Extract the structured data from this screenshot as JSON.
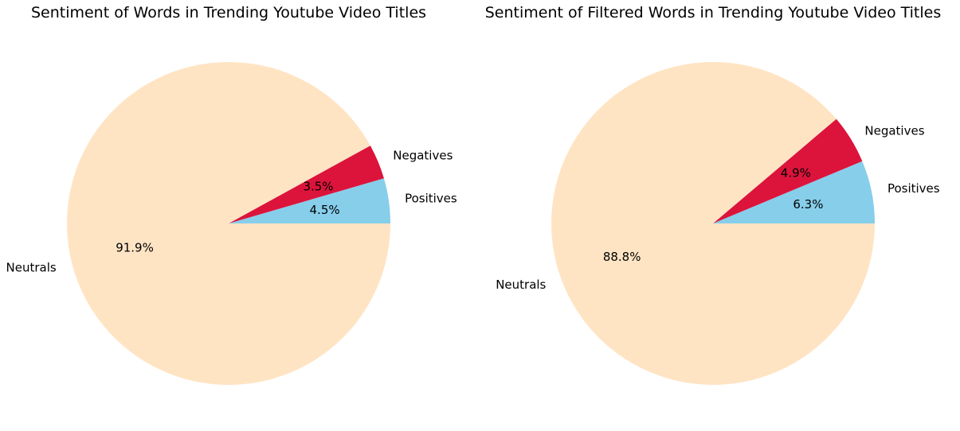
{
  "chart_data": [
    {
      "type": "pie",
      "title": "Sentiment of Words in Trending Youtube Video Titles",
      "start_angle_deg": 0,
      "direction": "counterclockwise",
      "slices": [
        {
          "label": "Positives",
          "value": 4.5,
          "pct_label": "4.5%",
          "color": "#87ceeb"
        },
        {
          "label": "Negatives",
          "value": 3.5,
          "pct_label": "3.5%",
          "color": "#dc143c"
        },
        {
          "label": "Neutrals",
          "value": 91.9,
          "pct_label": "91.9%",
          "color": "#ffe4c4"
        }
      ]
    },
    {
      "type": "pie",
      "title": "Sentiment of Filtered Words in Trending Youtube Video Titles",
      "start_angle_deg": 0,
      "direction": "counterclockwise",
      "slices": [
        {
          "label": "Positives",
          "value": 6.3,
          "pct_label": "6.3%",
          "color": "#87ceeb"
        },
        {
          "label": "Negatives",
          "value": 4.9,
          "pct_label": "4.9%",
          "color": "#dc143c"
        },
        {
          "label": "Neutrals",
          "value": 88.8,
          "pct_label": "88.8%",
          "color": "#ffe4c4"
        }
      ]
    }
  ]
}
